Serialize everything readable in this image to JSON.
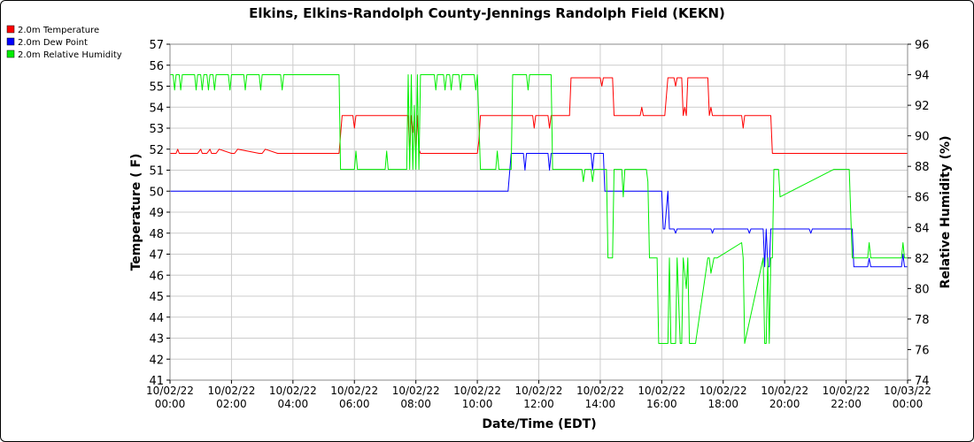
{
  "chart_data": {
    "type": "line",
    "title": "Elkins, Elkins-Randolph County-Jennings Randolph Field (KEKN)",
    "xlabel": "Date/Time (EDT)",
    "ylabel": "Temperature ( F)",
    "y2label": "Relative Humidity (%)",
    "ylim": [
      41,
      57
    ],
    "y2lim": [
      74,
      96
    ],
    "xlim_hours": [
      0,
      24
    ],
    "y_ticks": [
      "41",
      "42",
      "43",
      "44",
      "45",
      "46",
      "47",
      "48",
      "49",
      "50",
      "51",
      "52",
      "53",
      "54",
      "55",
      "56",
      "57"
    ],
    "y2_ticks": [
      "74",
      "76",
      "78",
      "80",
      "82",
      "84",
      "86",
      "88",
      "90",
      "92",
      "94",
      "96"
    ],
    "x_ticks": [
      {
        "date": "10/02/22",
        "time": "00:00"
      },
      {
        "date": "10/02/22",
        "time": "02:00"
      },
      {
        "date": "10/02/22",
        "time": "04:00"
      },
      {
        "date": "10/02/22",
        "time": "06:00"
      },
      {
        "date": "10/02/22",
        "time": "08:00"
      },
      {
        "date": "10/02/22",
        "time": "10:00"
      },
      {
        "date": "10/02/22",
        "time": "12:00"
      },
      {
        "date": "10/02/22",
        "time": "14:00"
      },
      {
        "date": "10/02/22",
        "time": "16:00"
      },
      {
        "date": "10/02/22",
        "time": "18:00"
      },
      {
        "date": "10/02/22",
        "time": "20:00"
      },
      {
        "date": "10/02/22",
        "time": "22:00"
      },
      {
        "date": "10/03/22",
        "time": "00:00"
      }
    ],
    "legend_position": "top-left",
    "grid": true,
    "series": [
      {
        "name": "2.0m Temperature",
        "color": "#ff0000",
        "axis": "left",
        "x": [
          0,
          0.2,
          0.25,
          0.3,
          0.9,
          1.0,
          1.05,
          1.2,
          1.3,
          1.35,
          1.5,
          1.6,
          2.0,
          2.1,
          2.2,
          2.9,
          3.0,
          3.1,
          3.5,
          5.5,
          5.6,
          5.95,
          6.0,
          6.05,
          6.5,
          7.75,
          7.8,
          7.85,
          7.9,
          7.95,
          8.0,
          8.05,
          8.1,
          8.15,
          8.6,
          10.0,
          10.05,
          10.1,
          11.8,
          11.85,
          11.9,
          12.3,
          12.35,
          12.4,
          13.0,
          13.05,
          14.0,
          14.05,
          14.1,
          14.4,
          14.45,
          15.3,
          15.35,
          15.4,
          15.7,
          16.1,
          16.2,
          16.4,
          16.45,
          16.5,
          16.65,
          16.7,
          16.75,
          16.8,
          16.85,
          16.9,
          17.5,
          17.55,
          17.6,
          17.65,
          17.7,
          18.6,
          18.65,
          18.7,
          19.55,
          19.6,
          24.0
        ],
        "values": [
          51.8,
          51.8,
          52.0,
          51.8,
          51.8,
          52.0,
          51.8,
          51.8,
          52.0,
          51.8,
          51.8,
          52.0,
          51.8,
          51.8,
          52.0,
          51.8,
          51.8,
          52.0,
          51.8,
          51.8,
          53.6,
          53.6,
          53.0,
          53.6,
          53.6,
          53.6,
          51.8,
          53.6,
          52.8,
          53.6,
          51.8,
          53.6,
          52.0,
          51.8,
          51.8,
          51.8,
          52.4,
          53.6,
          53.6,
          53.0,
          53.6,
          53.6,
          53.0,
          53.6,
          53.6,
          55.4,
          55.4,
          55.0,
          55.4,
          55.4,
          53.6,
          53.6,
          54.0,
          53.6,
          53.6,
          53.6,
          55.4,
          55.4,
          55.0,
          55.4,
          55.4,
          53.6,
          54.0,
          53.6,
          55.4,
          55.4,
          55.4,
          53.6,
          54.0,
          53.6,
          53.6,
          53.6,
          53.0,
          53.6,
          53.6,
          51.8,
          51.8
        ]
      },
      {
        "name": "2.0m Dew Point",
        "color": "#0000ff",
        "axis": "left",
        "x": [
          0,
          11.0,
          11.1,
          11.5,
          11.55,
          11.6,
          12.3,
          12.35,
          12.4,
          13.7,
          13.75,
          13.8,
          14.1,
          14.15,
          14.2,
          16.0,
          16.05,
          16.1,
          16.2,
          16.25,
          16.3,
          16.4,
          16.45,
          16.5,
          17.6,
          17.65,
          17.7,
          18.8,
          18.85,
          18.9,
          19.3,
          19.35,
          19.4,
          19.45,
          19.5,
          19.55,
          19.6,
          20.8,
          20.85,
          20.9,
          22.2,
          22.25,
          22.3,
          22.7,
          22.75,
          22.8,
          23.8,
          23.85,
          23.9,
          24.0
        ],
        "values": [
          50.0,
          50.0,
          51.8,
          51.8,
          51.0,
          51.8,
          51.8,
          51.0,
          51.8,
          51.8,
          51.0,
          51.8,
          51.8,
          50.0,
          50.0,
          50.0,
          48.2,
          48.2,
          50.0,
          48.2,
          48.2,
          48.2,
          48.0,
          48.2,
          48.2,
          48.0,
          48.2,
          48.2,
          48.0,
          48.2,
          48.2,
          46.4,
          48.2,
          46.4,
          46.4,
          48.2,
          48.2,
          48.2,
          48.0,
          48.2,
          48.2,
          46.4,
          46.4,
          46.4,
          46.8,
          46.4,
          46.4,
          47.0,
          46.4,
          46.4
        ]
      },
      {
        "name": "2.0m Relative Humidity",
        "color": "#00ee00",
        "axis": "right",
        "x": [
          0,
          0.1,
          0.15,
          0.2,
          0.3,
          0.35,
          0.4,
          0.8,
          0.85,
          0.9,
          1.0,
          1.05,
          1.1,
          1.2,
          1.25,
          1.3,
          1.4,
          1.45,
          1.5,
          1.9,
          1.95,
          2.0,
          2.4,
          2.45,
          2.5,
          2.9,
          2.95,
          3.0,
          3.6,
          3.65,
          3.7,
          5.5,
          5.55,
          5.6,
          6.0,
          6.05,
          6.1,
          7.0,
          7.05,
          7.1,
          7.7,
          7.75,
          7.8,
          7.85,
          7.9,
          7.95,
          8.0,
          8.05,
          8.1,
          8.15,
          8.6,
          8.65,
          8.7,
          8.9,
          8.95,
          9.0,
          9.1,
          9.15,
          9.2,
          9.4,
          9.45,
          9.5,
          9.9,
          9.95,
          10.0,
          10.1,
          10.6,
          10.65,
          10.7,
          11.1,
          11.15,
          11.2,
          11.6,
          11.65,
          11.7,
          12.4,
          12.45,
          13.4,
          13.45,
          13.5,
          13.7,
          13.75,
          13.8,
          14.2,
          14.25,
          14.4,
          14.45,
          14.5,
          14.7,
          14.75,
          14.8,
          15.5,
          15.55,
          15.6,
          15.8,
          15.85,
          15.9,
          16.2,
          16.25,
          16.3,
          16.4,
          16.45,
          16.5,
          16.6,
          16.65,
          16.7,
          16.8,
          16.85,
          16.9,
          17.0,
          17.05,
          17.1,
          17.5,
          17.55,
          17.6,
          17.7,
          17.75,
          17.8,
          18.6,
          18.65,
          18.7,
          19.3,
          19.35,
          19.4,
          19.45,
          19.5,
          19.55,
          19.6,
          19.65,
          19.7,
          19.8,
          19.85,
          21.6,
          21.65,
          21.7,
          22.0,
          22.05,
          22.1,
          22.2,
          22.25,
          22.3,
          22.7,
          22.75,
          22.8,
          23.8,
          23.85,
          23.9,
          24.0
        ],
        "values": [
          94.0,
          94.0,
          93.0,
          94.0,
          94.0,
          93.0,
          94.0,
          94.0,
          93.0,
          94.0,
          94.0,
          93.0,
          94.0,
          94.0,
          93.0,
          94.0,
          94.0,
          93.0,
          94.0,
          94.0,
          93.0,
          94.0,
          94.0,
          93.0,
          94.0,
          94.0,
          93.0,
          94.0,
          94.0,
          93.0,
          94.0,
          94.0,
          87.8,
          87.8,
          87.8,
          89.0,
          87.8,
          87.8,
          89.0,
          87.8,
          87.8,
          94.0,
          87.8,
          94.0,
          87.8,
          92.0,
          87.8,
          94.0,
          87.8,
          94.0,
          94.0,
          93.0,
          94.0,
          94.0,
          93.0,
          94.0,
          94.0,
          93.0,
          94.0,
          94.0,
          93.0,
          94.0,
          94.0,
          93.0,
          94.0,
          87.8,
          87.8,
          89.0,
          87.8,
          87.8,
          94.0,
          94.0,
          94.0,
          93.0,
          94.0,
          94.0,
          87.8,
          87.8,
          87.0,
          87.8,
          87.8,
          87.0,
          87.8,
          87.8,
          82.0,
          82.0,
          87.8,
          87.8,
          87.8,
          86.0,
          87.8,
          87.8,
          87.0,
          82.0,
          82.0,
          82.0,
          76.4,
          76.4,
          82.0,
          76.4,
          76.4,
          76.4,
          82.0,
          76.4,
          76.4,
          82.0,
          80.0,
          82.0,
          76.4,
          76.4,
          76.4,
          76.4,
          82.0,
          82.0,
          81.0,
          82.0,
          82.0,
          82.0,
          83.0,
          82.0,
          76.4,
          82.0,
          76.4,
          76.4,
          82.0,
          76.4,
          82.0,
          82.0,
          87.8,
          87.8,
          87.8,
          86.0,
          87.8,
          87.8,
          87.8,
          87.8,
          87.8,
          87.8,
          82.0,
          82.0,
          82.0,
          82.0,
          83.0,
          82.0,
          82.0,
          83.0,
          82.0,
          82.0
        ]
      }
    ]
  }
}
